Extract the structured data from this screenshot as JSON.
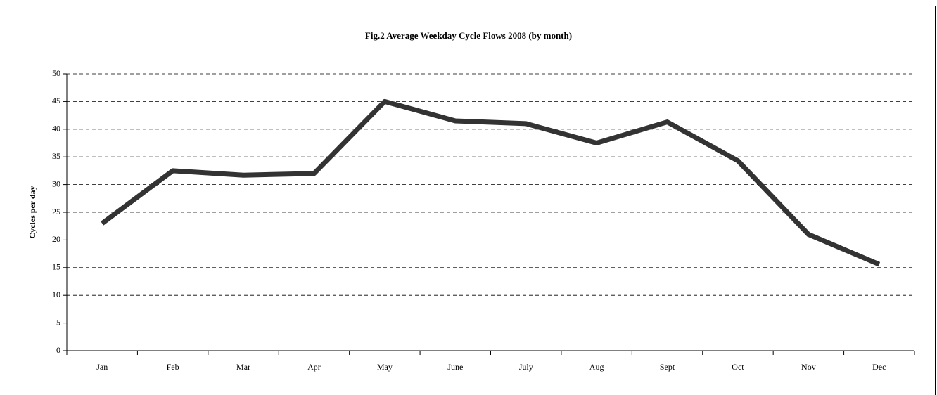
{
  "chart_data": {
    "type": "line",
    "title": "Fig.2 Average Weekday Cycle Flows 2008 (by month)",
    "y_label": "Cycles per day",
    "categories": [
      "Jan",
      "Feb",
      "Mar",
      "Apr",
      "May",
      "June",
      "July",
      "Aug",
      "Sept",
      "Oct",
      "Nov",
      "Dec"
    ],
    "values": [
      23,
      32.5,
      31.7,
      32,
      45,
      41.5,
      41,
      37.5,
      41.3,
      34.3,
      21,
      15.6
    ],
    "color": "#333333",
    "ylim": [
      0,
      50
    ],
    "yticks": [
      0,
      5,
      10,
      15,
      20,
      25,
      30,
      35,
      40,
      45,
      50
    ],
    "grid": true
  }
}
